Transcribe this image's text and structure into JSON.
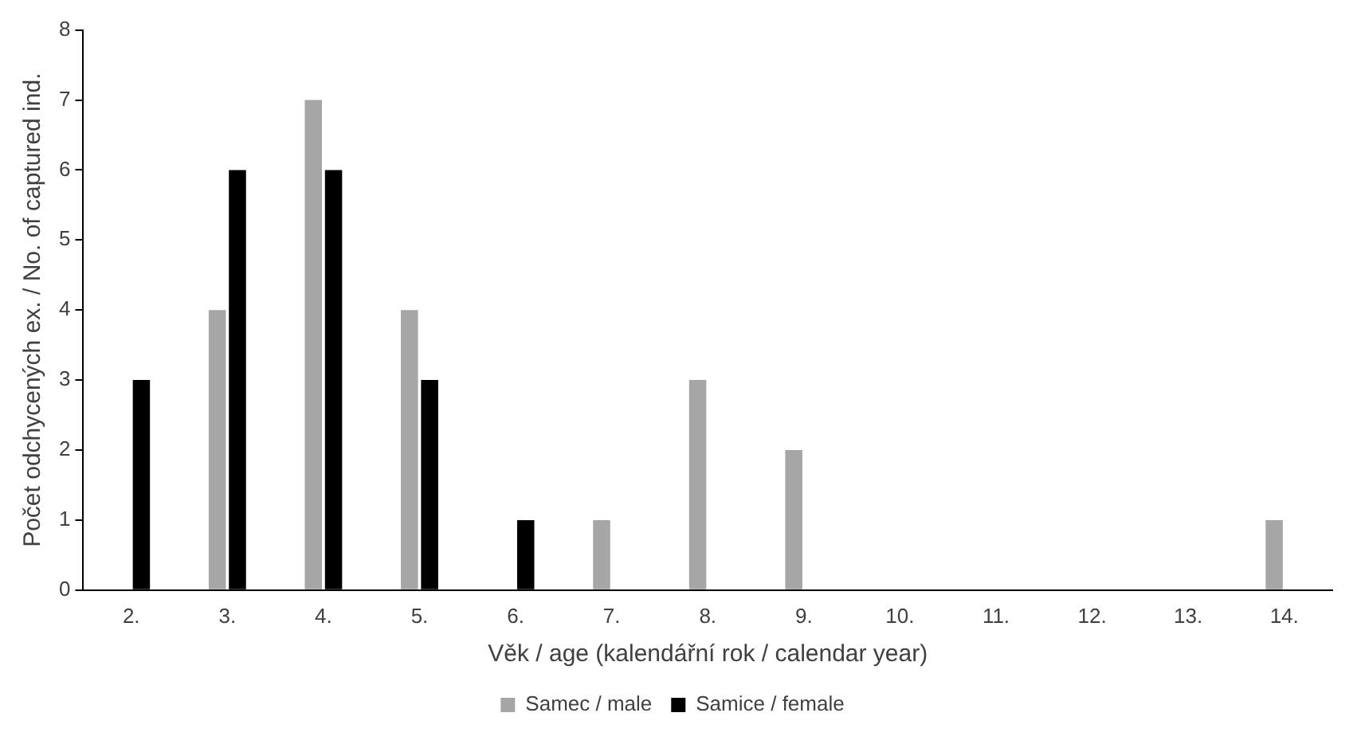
{
  "chart_data": {
    "type": "bar",
    "xlabel": "Věk / age (kalendářní rok / calendar year)",
    "ylabel": "Počet odchycených ex. / No. of captured ind.",
    "categories": [
      "2.",
      "3.",
      "4.",
      "5.",
      "6.",
      "7.",
      "8.",
      "9.",
      "10.",
      "11.",
      "12.",
      "13.",
      "14."
    ],
    "series": [
      {
        "name": "Samec / male",
        "color": "#a6a6a6",
        "values": [
          0,
          4,
          7,
          4,
          0,
          1,
          3,
          2,
          0,
          0,
          0,
          0,
          1
        ]
      },
      {
        "name": "Samice / female",
        "color": "#000000",
        "values": [
          3,
          6,
          6,
          3,
          1,
          0,
          0,
          0,
          0,
          0,
          0,
          0,
          0
        ]
      }
    ],
    "ylim": [
      0,
      8
    ],
    "yticks": [
      0,
      1,
      2,
      3,
      4,
      5,
      6,
      7,
      8
    ],
    "grid": false,
    "legend": "bottom"
  }
}
